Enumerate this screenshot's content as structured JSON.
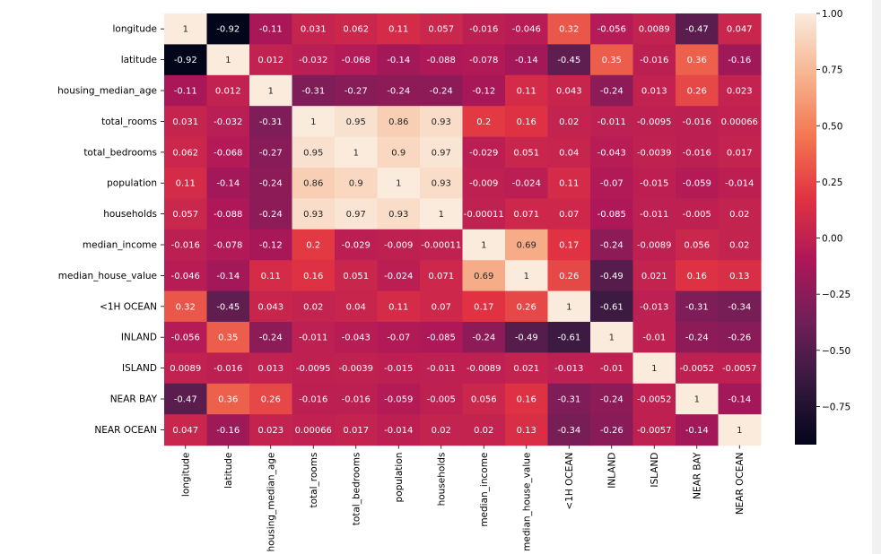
{
  "chart_data": {
    "type": "heatmap",
    "variables": [
      "longitude",
      "latitude",
      "housing_median_age",
      "total_rooms",
      "total_bedrooms",
      "population",
      "households",
      "median_income",
      "median_house_value",
      "<1H OCEAN",
      "INLAND",
      "ISLAND",
      "NEAR BAY",
      "NEAR OCEAN"
    ],
    "cell_labels": [
      [
        "1",
        "-0.92",
        "-0.11",
        "0.031",
        "0.062",
        "0.11",
        "0.057",
        "-0.016",
        "-0.046",
        "0.32",
        "-0.056",
        "0.0089",
        "-0.47",
        "0.047"
      ],
      [
        "-0.92",
        "1",
        "0.012",
        "-0.032",
        "-0.068",
        "-0.14",
        "-0.088",
        "-0.078",
        "-0.14",
        "-0.45",
        "0.35",
        "-0.016",
        "0.36",
        "-0.16"
      ],
      [
        "-0.11",
        "0.012",
        "1",
        "-0.31",
        "-0.27",
        "-0.24",
        "-0.24",
        "-0.12",
        "0.11",
        "0.043",
        "-0.24",
        "0.013",
        "0.26",
        "0.023"
      ],
      [
        "0.031",
        "-0.032",
        "-0.31",
        "1",
        "0.95",
        "0.86",
        "0.93",
        "0.2",
        "0.16",
        "0.02",
        "-0.011",
        "-0.0095",
        "-0.016",
        "0.00066"
      ],
      [
        "0.062",
        "-0.068",
        "-0.27",
        "0.95",
        "1",
        "0.9",
        "0.97",
        "-0.029",
        "0.051",
        "0.04",
        "-0.043",
        "-0.0039",
        "-0.016",
        "0.017"
      ],
      [
        "0.11",
        "-0.14",
        "-0.24",
        "0.86",
        "0.9",
        "1",
        "0.93",
        "-0.009",
        "-0.024",
        "0.11",
        "-0.07",
        "-0.015",
        "-0.059",
        "-0.014"
      ],
      [
        "0.057",
        "-0.088",
        "-0.24",
        "0.93",
        "0.97",
        "0.93",
        "1",
        "-0.00011",
        "0.071",
        "0.07",
        "-0.085",
        "-0.011",
        "-0.005",
        "0.02"
      ],
      [
        "-0.016",
        "-0.078",
        "-0.12",
        "0.2",
        "-0.029",
        "-0.009",
        "-0.00011",
        "1",
        "0.69",
        "0.17",
        "-0.24",
        "-0.0089",
        "0.056",
        "0.02"
      ],
      [
        "-0.046",
        "-0.14",
        "0.11",
        "0.16",
        "0.051",
        "-0.024",
        "0.071",
        "0.69",
        "1",
        "0.26",
        "-0.49",
        "0.021",
        "0.16",
        "0.13"
      ],
      [
        "0.32",
        "-0.45",
        "0.043",
        "0.02",
        "0.04",
        "0.11",
        "0.07",
        "0.17",
        "0.26",
        "1",
        "-0.61",
        "-0.013",
        "-0.31",
        "-0.34"
      ],
      [
        "-0.056",
        "0.35",
        "-0.24",
        "-0.011",
        "-0.043",
        "-0.07",
        "-0.085",
        "-0.24",
        "-0.49",
        "-0.61",
        "1",
        "-0.01",
        "-0.24",
        "-0.26"
      ],
      [
        "0.0089",
        "-0.016",
        "0.013",
        "-0.0095",
        "-0.0039",
        "-0.015",
        "-0.011",
        "-0.0089",
        "0.021",
        "-0.013",
        "-0.01",
        "1",
        "-0.0052",
        "-0.0057"
      ],
      [
        "-0.47",
        "0.36",
        "0.26",
        "-0.016",
        "-0.016",
        "-0.059",
        "-0.005",
        "0.056",
        "0.16",
        "-0.31",
        "-0.24",
        "-0.0052",
        "1",
        "-0.14"
      ],
      [
        "0.047",
        "-0.16",
        "0.023",
        "0.00066",
        "0.017",
        "-0.014",
        "0.02",
        "0.02",
        "0.13",
        "-0.34",
        "-0.26",
        "-0.0057",
        "-0.14",
        "1"
      ]
    ],
    "color_range": [
      -0.92,
      1.0
    ],
    "colormap": "rocket",
    "colorbar_ticks": [
      "1.00",
      "0.75",
      "0.50",
      "0.25",
      "0.00",
      "−0.25",
      "−0.50",
      "−0.75"
    ],
    "colorbar_tick_values": [
      1.0,
      0.75,
      0.5,
      0.25,
      0.0,
      -0.25,
      -0.5,
      -0.75
    ],
    "grid": false,
    "legend": "colorbar-right"
  },
  "colors": {
    "rocket_stops": [
      "#03051a",
      "#35193e",
      "#701f57",
      "#ad1759",
      "#e13342",
      "#f37651",
      "#f6b48f",
      "#faebdd"
    ],
    "scrollbar": "#f1f1f1"
  }
}
